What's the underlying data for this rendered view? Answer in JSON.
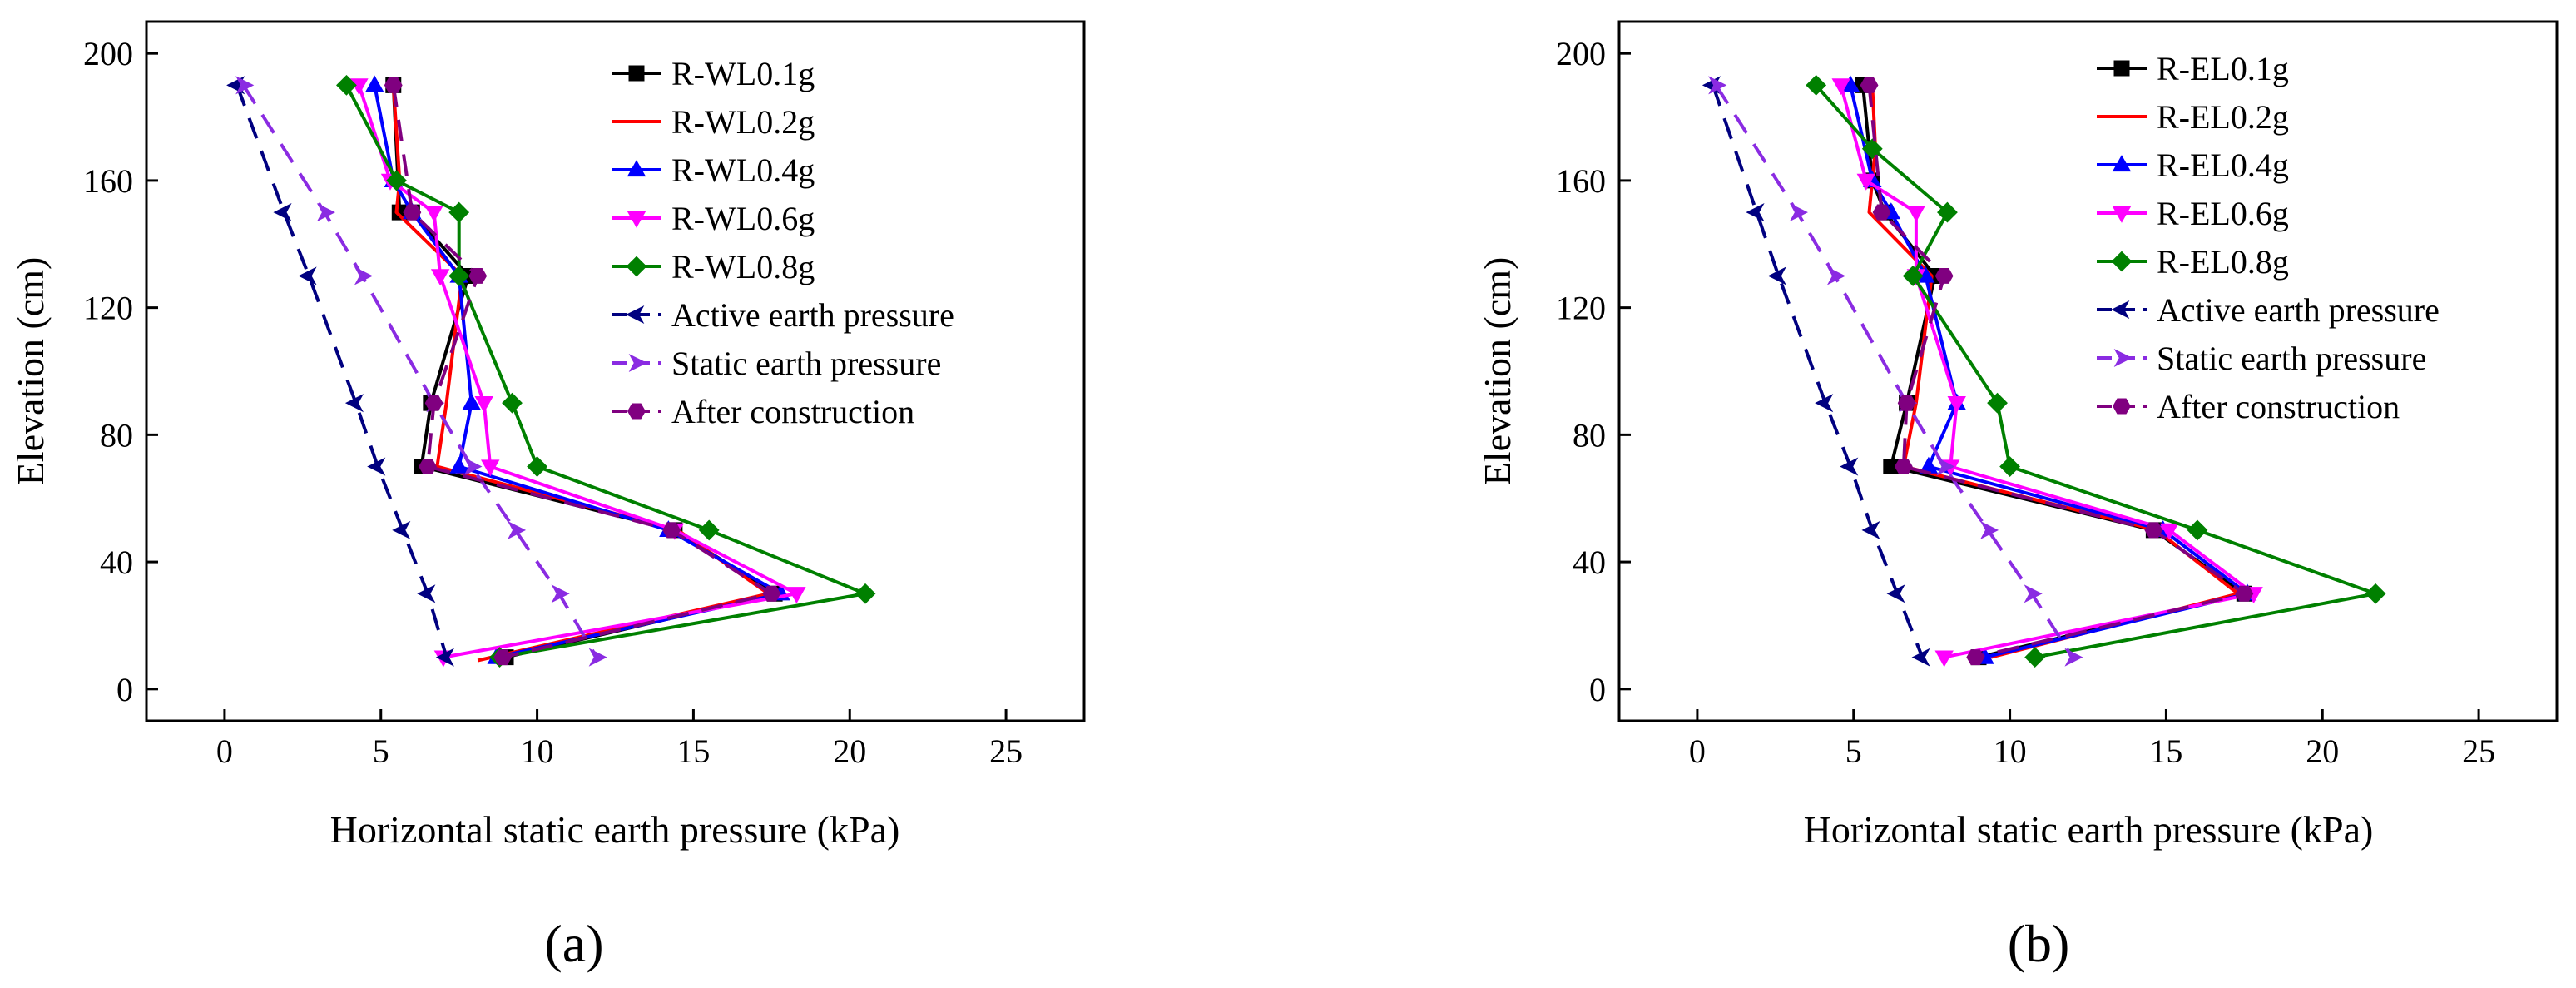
{
  "figure": {
    "panel_labels": [
      "(a)",
      "(b)"
    ]
  },
  "chart_data": [
    {
      "type": "line",
      "panel": "(a)",
      "xlabel": "Horizontal static earth pressure (kPa)",
      "ylabel": "Elevation (cm)",
      "xlim": [
        -2.5,
        27.5
      ],
      "ylim": [
        -10,
        210
      ],
      "xticks": [
        0,
        5,
        10,
        15,
        20,
        25
      ],
      "yticks": [
        0,
        40,
        80,
        120,
        160,
        200
      ],
      "legend_position": "top-right",
      "series": [
        {
          "name": "R-WL0.1g",
          "color": "#000000",
          "marker": "square",
          "dash": false,
          "x": [
            5.4,
            5.6,
            6.0,
            7.8,
            6.6,
            6.3,
            14.4,
            17.6,
            9.0
          ],
          "y": [
            190,
            150,
            150,
            130,
            90,
            70,
            50,
            30,
            10
          ]
        },
        {
          "name": "R-WL0.2g",
          "color": "#ff0000",
          "marker": "circle",
          "dash": false,
          "x": [
            5.4,
            5.6,
            5.5,
            7.6,
            7.1,
            6.8,
            14.5,
            17.4,
            8.1
          ],
          "y": [
            190,
            160,
            150,
            130,
            90,
            70,
            50,
            30,
            9
          ]
        },
        {
          "name": "R-WL0.4g",
          "color": "#0000ff",
          "marker": "triangle-up",
          "dash": false,
          "x": [
            4.8,
            5.4,
            6.0,
            7.5,
            7.9,
            7.5,
            14.2,
            17.8,
            8.7
          ],
          "y": [
            190,
            160,
            150,
            130,
            90,
            70,
            50,
            30,
            10
          ]
        },
        {
          "name": "R-WL0.6g",
          "color": "#ff00ff",
          "marker": "triangle-down",
          "dash": false,
          "x": [
            4.3,
            5.3,
            6.7,
            6.9,
            8.3,
            8.5,
            14.4,
            18.3,
            7.0
          ],
          "y": [
            190,
            160,
            150,
            130,
            90,
            70,
            50,
            30,
            10
          ]
        },
        {
          "name": "R-WL0.8g",
          "color": "#008000",
          "marker": "diamond",
          "dash": false,
          "x": [
            3.9,
            5.5,
            7.5,
            7.5,
            9.2,
            10.0,
            15.5,
            20.5,
            8.8
          ],
          "y": [
            190,
            160,
            150,
            130,
            90,
            70,
            50,
            30,
            10
          ]
        },
        {
          "name": "Active earth pressure",
          "color": "#000080",
          "marker": "arrow-left",
          "dash": true,
          "x": [
            0.4,
            1.9,
            2.7,
            4.2,
            4.9,
            5.7,
            6.5,
            7.1
          ],
          "y": [
            190,
            150,
            130,
            90,
            70,
            50,
            30,
            10
          ]
        },
        {
          "name": "Static earth pressure",
          "color": "#8a2be2",
          "marker": "arrow-right",
          "dash": true,
          "x": [
            0.6,
            3.2,
            4.4,
            6.7,
            7.9,
            9.3,
            10.7,
            11.9
          ],
          "y": [
            190,
            150,
            130,
            90,
            70,
            50,
            30,
            10
          ]
        },
        {
          "name": "After construction",
          "color": "#800080",
          "marker": "hexagon",
          "dash": true,
          "x": [
            5.4,
            6.0,
            8.1,
            6.7,
            6.5,
            14.3,
            17.5,
            8.9
          ],
          "y": [
            190,
            150,
            130,
            90,
            70,
            50,
            30,
            10
          ]
        }
      ]
    },
    {
      "type": "line",
      "panel": "(b)",
      "xlabel": "Horizontal static earth pressure (kPa)",
      "ylabel": "Elevation (cm)",
      "xlim": [
        -2.5,
        27.5
      ],
      "ylim": [
        -10,
        210
      ],
      "xticks": [
        0,
        5,
        10,
        15,
        20,
        25
      ],
      "yticks": [
        0,
        40,
        80,
        120,
        160,
        200
      ],
      "legend_position": "top-right",
      "series": [
        {
          "name": "R-EL0.1g",
          "color": "#000000",
          "marker": "square",
          "dash": false,
          "x": [
            5.3,
            5.6,
            6.0,
            7.6,
            6.7,
            6.2,
            14.6,
            17.5,
            9.0
          ],
          "y": [
            190,
            160,
            150,
            130,
            90,
            70,
            50,
            30,
            10
          ]
        },
        {
          "name": "R-EL0.2g",
          "color": "#ff0000",
          "marker": "circle",
          "dash": false,
          "x": [
            5.6,
            5.7,
            5.5,
            7.5,
            7.0,
            6.6,
            14.7,
            17.3,
            9.4
          ],
          "y": [
            190,
            170,
            150,
            130,
            90,
            70,
            50,
            30,
            10
          ]
        },
        {
          "name": "R-EL0.4g",
          "color": "#0000ff",
          "marker": "triangle-up",
          "dash": false,
          "x": [
            4.9,
            5.6,
            6.2,
            7.3,
            8.3,
            7.4,
            14.9,
            17.6,
            9.2
          ],
          "y": [
            190,
            160,
            150,
            130,
            90,
            70,
            50,
            30,
            10
          ]
        },
        {
          "name": "R-EL0.6g",
          "color": "#ff00ff",
          "marker": "triangle-down",
          "dash": false,
          "x": [
            4.6,
            5.4,
            7.0,
            7.0,
            8.3,
            8.1,
            15.1,
            17.8,
            7.9
          ],
          "y": [
            190,
            160,
            150,
            130,
            90,
            70,
            50,
            30,
            10
          ]
        },
        {
          "name": "R-EL0.8g",
          "color": "#008000",
          "marker": "diamond",
          "dash": false,
          "x": [
            3.8,
            5.6,
            8.0,
            6.9,
            9.6,
            10.0,
            16.0,
            21.7,
            10.8
          ],
          "y": [
            190,
            170,
            150,
            130,
            90,
            70,
            50,
            30,
            10
          ]
        },
        {
          "name": "Active earth pressure",
          "color": "#000080",
          "marker": "arrow-left",
          "dash": true,
          "x": [
            0.5,
            1.9,
            2.6,
            4.1,
            4.9,
            5.6,
            6.4,
            7.2
          ],
          "y": [
            190,
            150,
            130,
            90,
            70,
            50,
            30,
            10
          ]
        },
        {
          "name": "Static earth pressure",
          "color": "#8a2be2",
          "marker": "arrow-right",
          "dash": true,
          "x": [
            0.6,
            3.2,
            4.4,
            6.7,
            7.9,
            9.3,
            10.7,
            12.0
          ],
          "y": [
            190,
            150,
            130,
            90,
            70,
            50,
            30,
            10
          ]
        },
        {
          "name": "After construction",
          "color": "#800080",
          "marker": "hexagon",
          "dash": true,
          "x": [
            5.5,
            5.9,
            7.9,
            6.7,
            6.6,
            14.6,
            17.5,
            8.9
          ],
          "y": [
            190,
            150,
            130,
            90,
            70,
            50,
            30,
            10
          ]
        }
      ]
    }
  ]
}
